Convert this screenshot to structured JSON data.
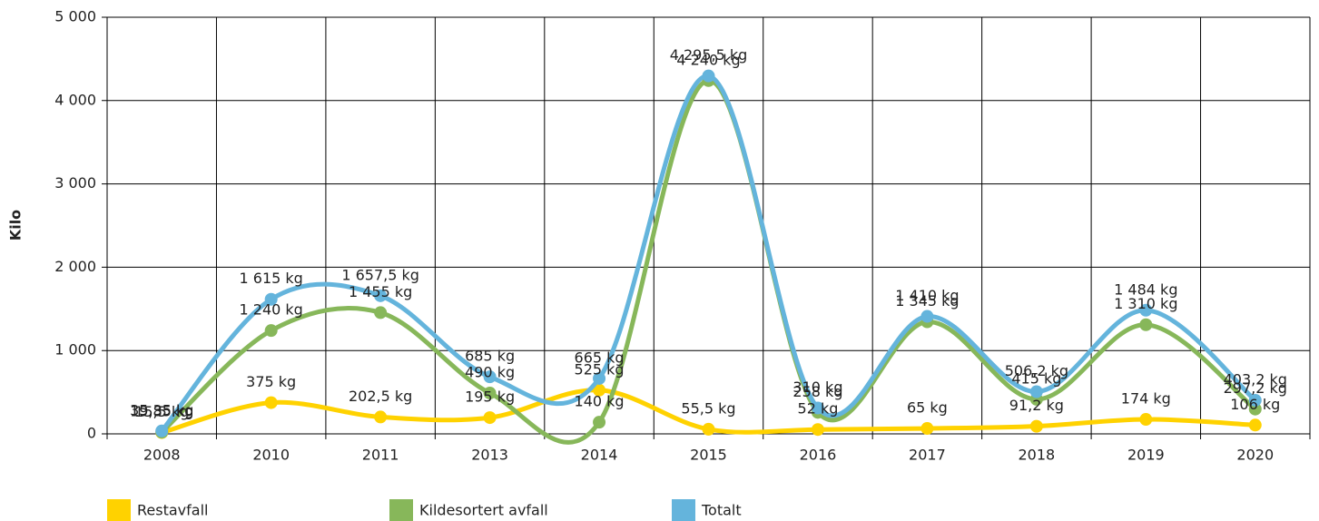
{
  "chart_data": {
    "type": "line",
    "categories": [
      "2008",
      "2010",
      "2011",
      "2013",
      "2014",
      "2015",
      "2016",
      "2017",
      "2018",
      "2019",
      "2020"
    ],
    "y_label": "Kilo",
    "ylim": [
      0,
      5000
    ],
    "yticks": [
      0,
      {
        "value": 1000,
        "label": "1 000"
      },
      {
        "value": 2000,
        "label": "2 000"
      },
      {
        "value": 3000,
        "label": "3 000"
      },
      {
        "value": 4000,
        "label": "4 000"
      },
      {
        "value": 5000,
        "label": "5 000"
      }
    ],
    "grid": true,
    "legend": "bottom",
    "series": [
      {
        "name": "Restavfall",
        "color": "#ffd200",
        "values": [
          15.5,
          375,
          202.5,
          195,
          525,
          55.5,
          52,
          65,
          91.2,
          174,
          106
        ],
        "value_labels": [
          "15,5 kg",
          "375 kg",
          "202,5 kg",
          "195 kg",
          "525 kg",
          "55,5 kg",
          "52 kg",
          "65 kg",
          "91,2 kg",
          "174 kg",
          "106 kg"
        ]
      },
      {
        "name": "Kildesortert avfall",
        "color": "#87b75a",
        "values": [
          19.85,
          1240,
          1455,
          490,
          140,
          4240,
          258,
          1345,
          415,
          1310,
          297.2
        ],
        "value_labels": [
          "19,85 kg",
          "1 240 kg",
          "1 455 kg",
          "490 kg",
          "140 kg",
          "4 240 kg",
          "258 kg",
          "1 345 kg",
          "415 kg",
          "1 310 kg",
          "297,2 kg"
        ]
      },
      {
        "name": "Totalt",
        "color": "#64b4dc",
        "values": [
          35.35,
          1615,
          1657.5,
          685,
          665,
          4295.5,
          310,
          1410,
          506.2,
          1484,
          403.2
        ],
        "value_labels": [
          "35,35 kg",
          "1 615 kg",
          "1 657,5 kg",
          "685 kg",
          "665 kg",
          "4 295,5 kg",
          "310 kg",
          "1 410 kg",
          "506,2 kg",
          "1 484 kg",
          "403,2 kg"
        ]
      }
    ]
  }
}
